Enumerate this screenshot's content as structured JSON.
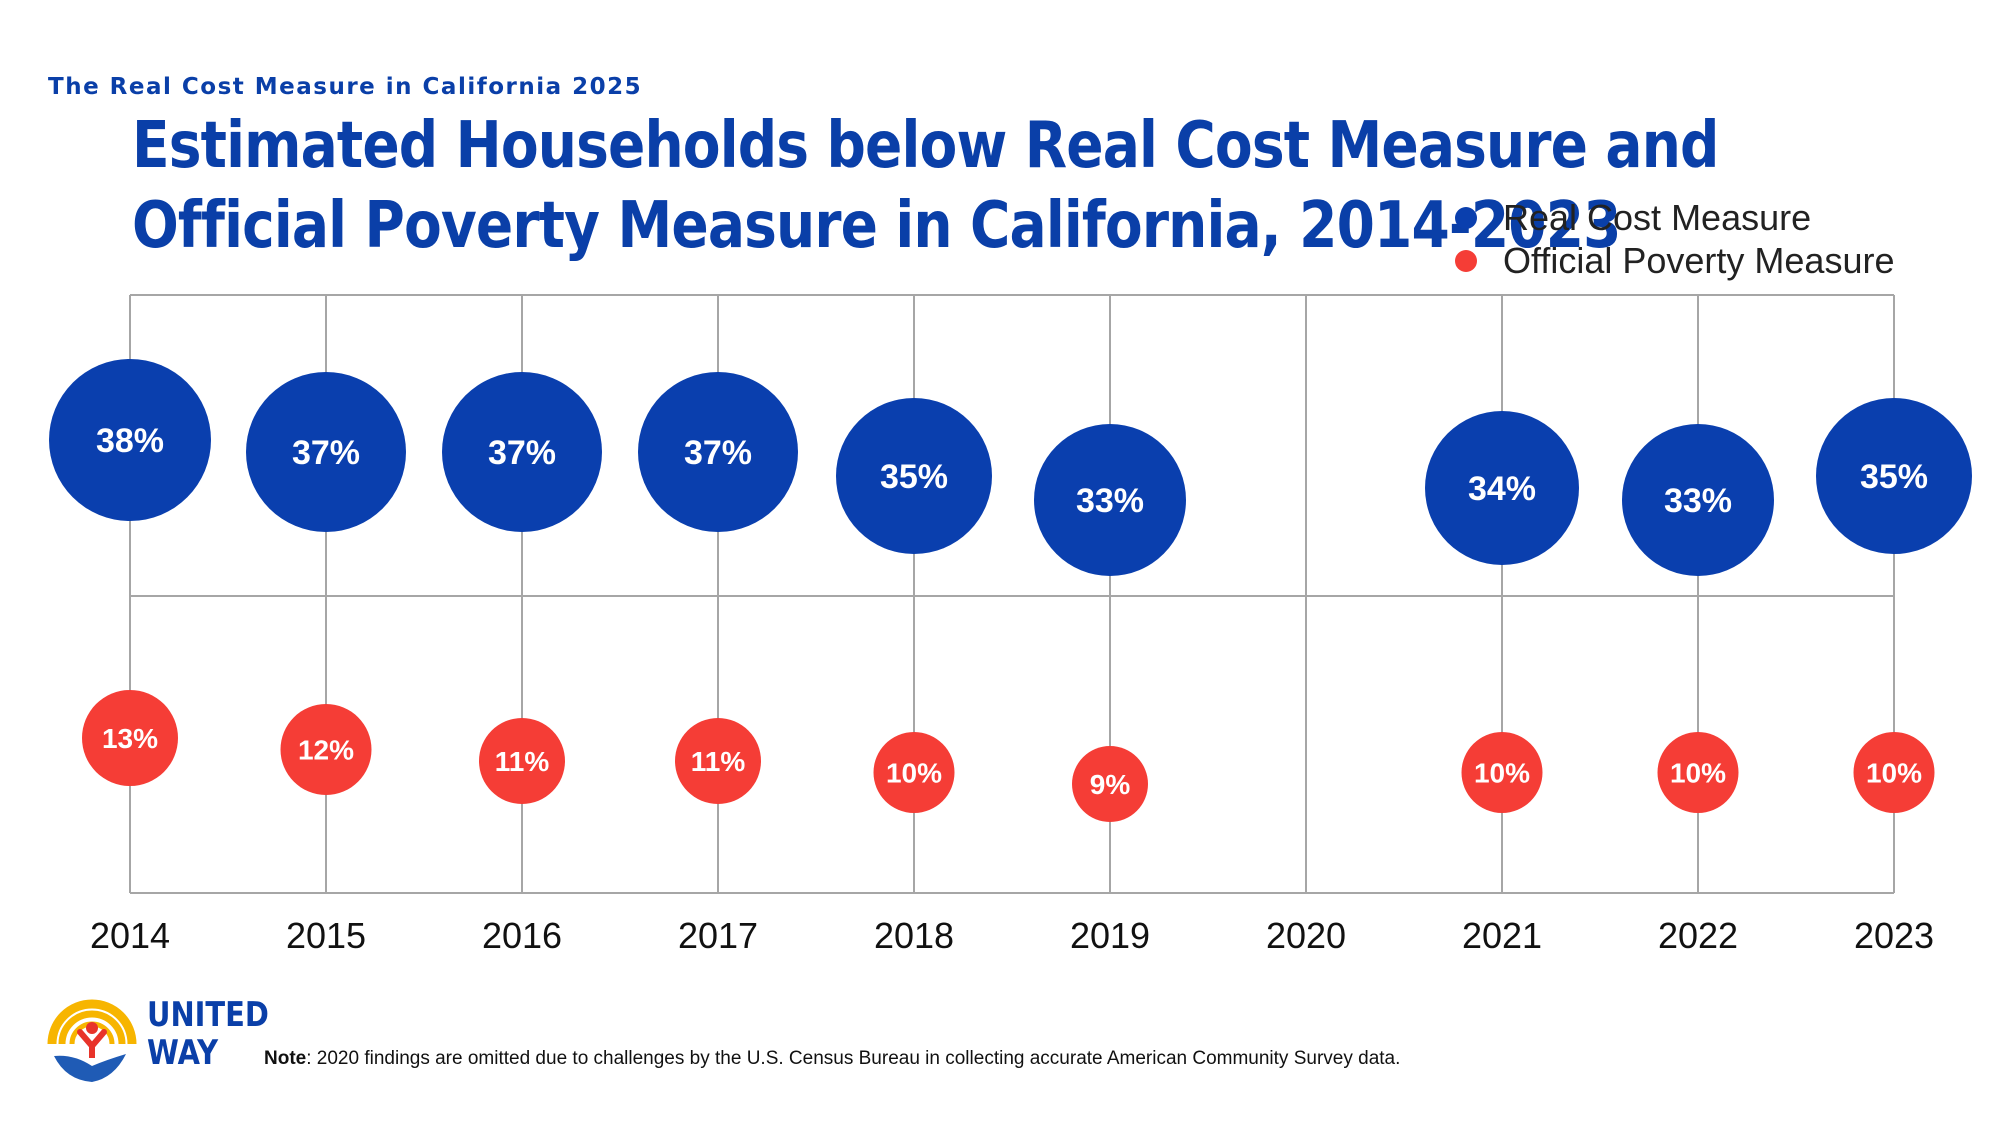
{
  "header": {
    "supertitle": "The Real Cost Measure in California 2025",
    "title_line1": "Estimated Households below Real Cost Measure and",
    "title_line2": "Official Poverty Measure in California, 2014-2023"
  },
  "colors": {
    "real_cost": "#0a3fae",
    "official_poverty": "#f53d36",
    "grid": "#a6a6a6",
    "title": "#0a3fa8"
  },
  "legend": [
    {
      "label": "Real Cost Measure",
      "color": "#0a3fae"
    },
    {
      "label": "Official Poverty Measure",
      "color": "#f53d36"
    }
  ],
  "chart_data": {
    "type": "scatter",
    "title": "Estimated Households below Real Cost Measure and Official Poverty Measure in California, 2014-2023",
    "xlabel": "",
    "ylabel": "",
    "categories": [
      "2014",
      "2015",
      "2016",
      "2017",
      "2018",
      "2019",
      "2020",
      "2021",
      "2022",
      "2023"
    ],
    "series": [
      {
        "name": "Real Cost Measure",
        "values": [
          38,
          37,
          37,
          37,
          35,
          33,
          null,
          34,
          33,
          35
        ],
        "labels": [
          "38%",
          "37%",
          "37%",
          "37%",
          "35%",
          "33%",
          "",
          "34%",
          "33%",
          "35%"
        ]
      },
      {
        "name": "Official Poverty Measure",
        "values": [
          13,
          12,
          11,
          11,
          10,
          9,
          null,
          10,
          10,
          10
        ],
        "labels": [
          "13%",
          "12%",
          "11%",
          "11%",
          "10%",
          "9%",
          "",
          "10%",
          "10%",
          "10%"
        ]
      }
    ],
    "legend_position": "top-right",
    "grid": true
  },
  "logo": {
    "line1": "UNITED",
    "line2": "WAY"
  },
  "note": {
    "prefix": "Note",
    "text": ": 2020 findings are omitted due to challenges by the U.S. Census Bureau in collecting accurate American Community Survey data."
  }
}
